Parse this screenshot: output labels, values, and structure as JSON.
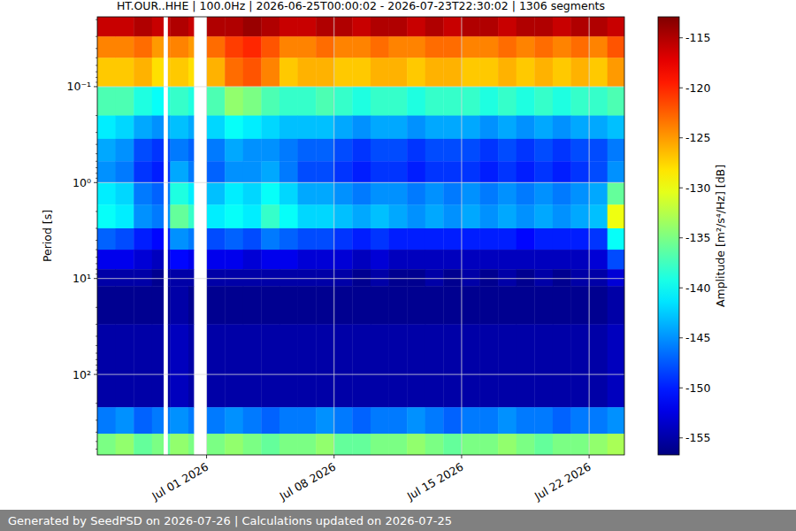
{
  "chart_data": {
    "type": "heatmap",
    "title": "HT.OUR..HHE | 100.0Hz | 2026-06-25T00:00:02 - 2026-07-23T22:30:02 | 1306 segments",
    "y_label": "Period [s]",
    "log": "y",
    "grid": true,
    "xlim": [
      "2026-06-25T00:00",
      "2026-07-23T22:30"
    ],
    "xticks": [
      {
        "value": "2026-07-01T00:00",
        "label": "Jul 01 2026"
      },
      {
        "value": "2026-07-08T00:00",
        "label": "Jul 08 2026"
      },
      {
        "value": "2026-07-15T00:00",
        "label": "Jul 15 2026"
      },
      {
        "value": "2026-07-22T00:00",
        "label": "Jul 22 2026"
      }
    ],
    "ylim": [
      0.0187,
      690
    ],
    "yticks": [
      {
        "value": 0.1,
        "label": "10⁻¹"
      },
      {
        "value": 1,
        "label": "10⁰"
      },
      {
        "value": 10,
        "label": "10¹"
      },
      {
        "value": 100,
        "label": "10²"
      }
    ],
    "x_edges": [
      "2026-06-25T00:00",
      "2026-06-26T00:00",
      "2026-06-27T00:00",
      "2026-06-28T00:00",
      "2026-06-28T15:00",
      "2026-06-28T21:00",
      "2026-06-29T00:00",
      "2026-06-30T00:00",
      "2026-06-30T07:00",
      "2026-07-01T00:00",
      "2026-07-02T00:00",
      "2026-07-03T00:00",
      "2026-07-04T00:00",
      "2026-07-05T00:00",
      "2026-07-06T00:00",
      "2026-07-07T00:00",
      "2026-07-08T00:00",
      "2026-07-09T00:00",
      "2026-07-10T00:00",
      "2026-07-11T00:00",
      "2026-07-12T00:00",
      "2026-07-13T00:00",
      "2026-07-14T00:00",
      "2026-07-15T00:00",
      "2026-07-16T00:00",
      "2026-07-17T00:00",
      "2026-07-18T00:00",
      "2026-07-19T00:00",
      "2026-07-20T00:00",
      "2026-07-21T00:00",
      "2026-07-22T00:00",
      "2026-07-23T00:00",
      "2026-07-23T22:30"
    ],
    "y_edges": [
      0.0187,
      0.03,
      0.05,
      0.1,
      0.2,
      0.35,
      0.6,
      1,
      1.7,
      3,
      5,
      8,
      12,
      30,
      220,
      415,
      690
    ],
    "cells": [
      [
        -116,
        -116,
        -115,
        -116,
        null,
        -116,
        -115,
        -116,
        null,
        -115,
        -115,
        -114,
        -115,
        -116,
        -116,
        -115,
        -115,
        -116,
        -115,
        -115,
        -116,
        -115,
        -116,
        -115,
        -115,
        -116,
        -115,
        -115,
        -116,
        -115,
        -115,
        -116
      ],
      [
        -124,
        -124,
        -123,
        -125,
        null,
        -124,
        -124,
        -125,
        null,
        -123,
        -121,
        -120,
        -122,
        -124,
        -124,
        -123,
        -124,
        -124,
        -123,
        -124,
        -124,
        -123,
        -123,
        -124,
        -124,
        -123,
        -124,
        -123,
        -124,
        -123,
        -124,
        -122
      ],
      [
        -127,
        -127,
        -126,
        -128,
        null,
        -127,
        -127,
        -128,
        null,
        -126,
        -123,
        -122,
        -124,
        -127,
        -126,
        -126,
        -127,
        -127,
        -126,
        -126,
        -127,
        -126,
        -126,
        -127,
        -127,
        -126,
        -127,
        -126,
        -127,
        -126,
        -127,
        -125
      ],
      [
        -137,
        -137,
        -139,
        -140,
        null,
        -139,
        -138,
        -139,
        null,
        -137,
        -134,
        -135,
        -137,
        -138,
        -138,
        -137,
        -138,
        -139,
        -138,
        -138,
        -139,
        -138,
        -138,
        -138,
        -139,
        -138,
        -139,
        -138,
        -139,
        -138,
        -138,
        -137
      ],
      [
        -141,
        -142,
        -144,
        -145,
        null,
        -144,
        -143,
        -144,
        null,
        -142,
        -140,
        -141,
        -142,
        -143,
        -143,
        -143,
        -144,
        -145,
        -144,
        -144,
        -145,
        -144,
        -144,
        -144,
        -145,
        -144,
        -145,
        -144,
        -145,
        -144,
        -144,
        -143
      ],
      [
        -144,
        -145,
        -148,
        -149,
        null,
        -148,
        -146,
        -147,
        null,
        -146,
        -144,
        -145,
        -145,
        -146,
        -147,
        -147,
        -148,
        -149,
        -148,
        -148,
        -149,
        -148,
        -148,
        -148,
        -149,
        -148,
        -149,
        -148,
        -149,
        -148,
        -148,
        -146
      ],
      [
        -145,
        -146,
        -149,
        -150,
        null,
        -149,
        -144,
        -146,
        null,
        -147,
        -145,
        -145,
        -144,
        -146,
        -148,
        -148,
        -149,
        -150,
        -149,
        -149,
        -150,
        -149,
        -149,
        -149,
        -150,
        -149,
        -150,
        -149,
        -150,
        -149,
        -148,
        -145
      ],
      [
        -141,
        -142,
        -146,
        -147,
        null,
        -146,
        -139,
        -141,
        null,
        -143,
        -141,
        -142,
        -140,
        -142,
        -144,
        -144,
        -145,
        -146,
        -145,
        -145,
        -146,
        -145,
        -146,
        -145,
        -146,
        -145,
        -146,
        -145,
        -146,
        -145,
        -144,
        -136
      ],
      [
        -140,
        -141,
        -145,
        -146,
        null,
        -145,
        -136,
        -138,
        null,
        -141,
        -140,
        -141,
        -138,
        -140,
        -142,
        -142,
        -143,
        -144,
        -143,
        -144,
        -145,
        -144,
        -145,
        -144,
        -145,
        -144,
        -145,
        -144,
        -145,
        -144,
        -143,
        -130
      ],
      [
        -147,
        -148,
        -150,
        -151,
        null,
        -150,
        -145,
        -146,
        null,
        -148,
        -147,
        -148,
        -146,
        -147,
        -148,
        -148,
        -149,
        -150,
        -149,
        -150,
        -150,
        -150,
        -150,
        -150,
        -150,
        -150,
        -151,
        -150,
        -150,
        -150,
        -149,
        -140
      ],
      [
        -152,
        -152,
        -153,
        -154,
        null,
        -153,
        -151,
        -152,
        null,
        -152,
        -152,
        -153,
        -152,
        -152,
        -153,
        -153,
        -153,
        -154,
        -153,
        -154,
        -154,
        -154,
        -154,
        -154,
        -154,
        -154,
        -154,
        -154,
        -154,
        -154,
        -153,
        -148
      ],
      [
        -155,
        -155,
        -155,
        -156,
        null,
        -155,
        -155,
        -155,
        null,
        -155,
        -155,
        -155,
        -155,
        -155,
        -155,
        -155,
        -155,
        -156,
        -155,
        -156,
        -156,
        -155,
        -156,
        -155,
        -156,
        -155,
        -156,
        -155,
        -156,
        -155,
        -155,
        -153
      ],
      [
        -156,
        -156,
        -156,
        -156,
        null,
        -156,
        -155,
        -156,
        null,
        -156,
        -156,
        -156,
        -156,
        -156,
        -156,
        -156,
        -156,
        -156,
        -156,
        -156,
        -156,
        -156,
        -156,
        -156,
        -156,
        -156,
        -156,
        -156,
        -156,
        -156,
        -156,
        -155
      ],
      [
        -155,
        -155,
        -155,
        -155,
        null,
        -155,
        -154,
        -155,
        null,
        -155,
        -155,
        -155,
        -155,
        -155,
        -155,
        -155,
        -155,
        -155,
        -155,
        -155,
        -155,
        -155,
        -155,
        -155,
        -155,
        -155,
        -155,
        -155,
        -155,
        -155,
        -155,
        -154
      ],
      [
        -146,
        -145,
        -147,
        -146,
        null,
        -146,
        -145,
        -146,
        null,
        -146,
        -145,
        -146,
        -147,
        -146,
        -146,
        -145,
        -146,
        -147,
        -146,
        -146,
        -145,
        -146,
        -147,
        -146,
        -146,
        -145,
        -146,
        -146,
        -147,
        -146,
        -146,
        -145
      ],
      [
        -135,
        -134,
        -136,
        -135,
        null,
        -136,
        -134,
        -135,
        null,
        -135,
        -134,
        -135,
        -136,
        -135,
        -135,
        -134,
        -136,
        -136,
        -135,
        -135,
        -134,
        -135,
        -136,
        -135,
        -135,
        -134,
        -135,
        -136,
        -135,
        -135,
        -134,
        -133
      ]
    ],
    "colorbar": {
      "label": "Amplitude [m²/s⁴/Hz] [dB]",
      "lim": [
        -156.7,
        -112.9
      ],
      "ticks": [
        -155,
        -150,
        -145,
        -140,
        -135,
        -130,
        -125,
        -120,
        -115
      ]
    }
  },
  "footer": {
    "generated": "Generated by SeedPSD on 2026-07-26",
    "separator": "|",
    "updated": "Calculations updated on 2026-07-25"
  }
}
